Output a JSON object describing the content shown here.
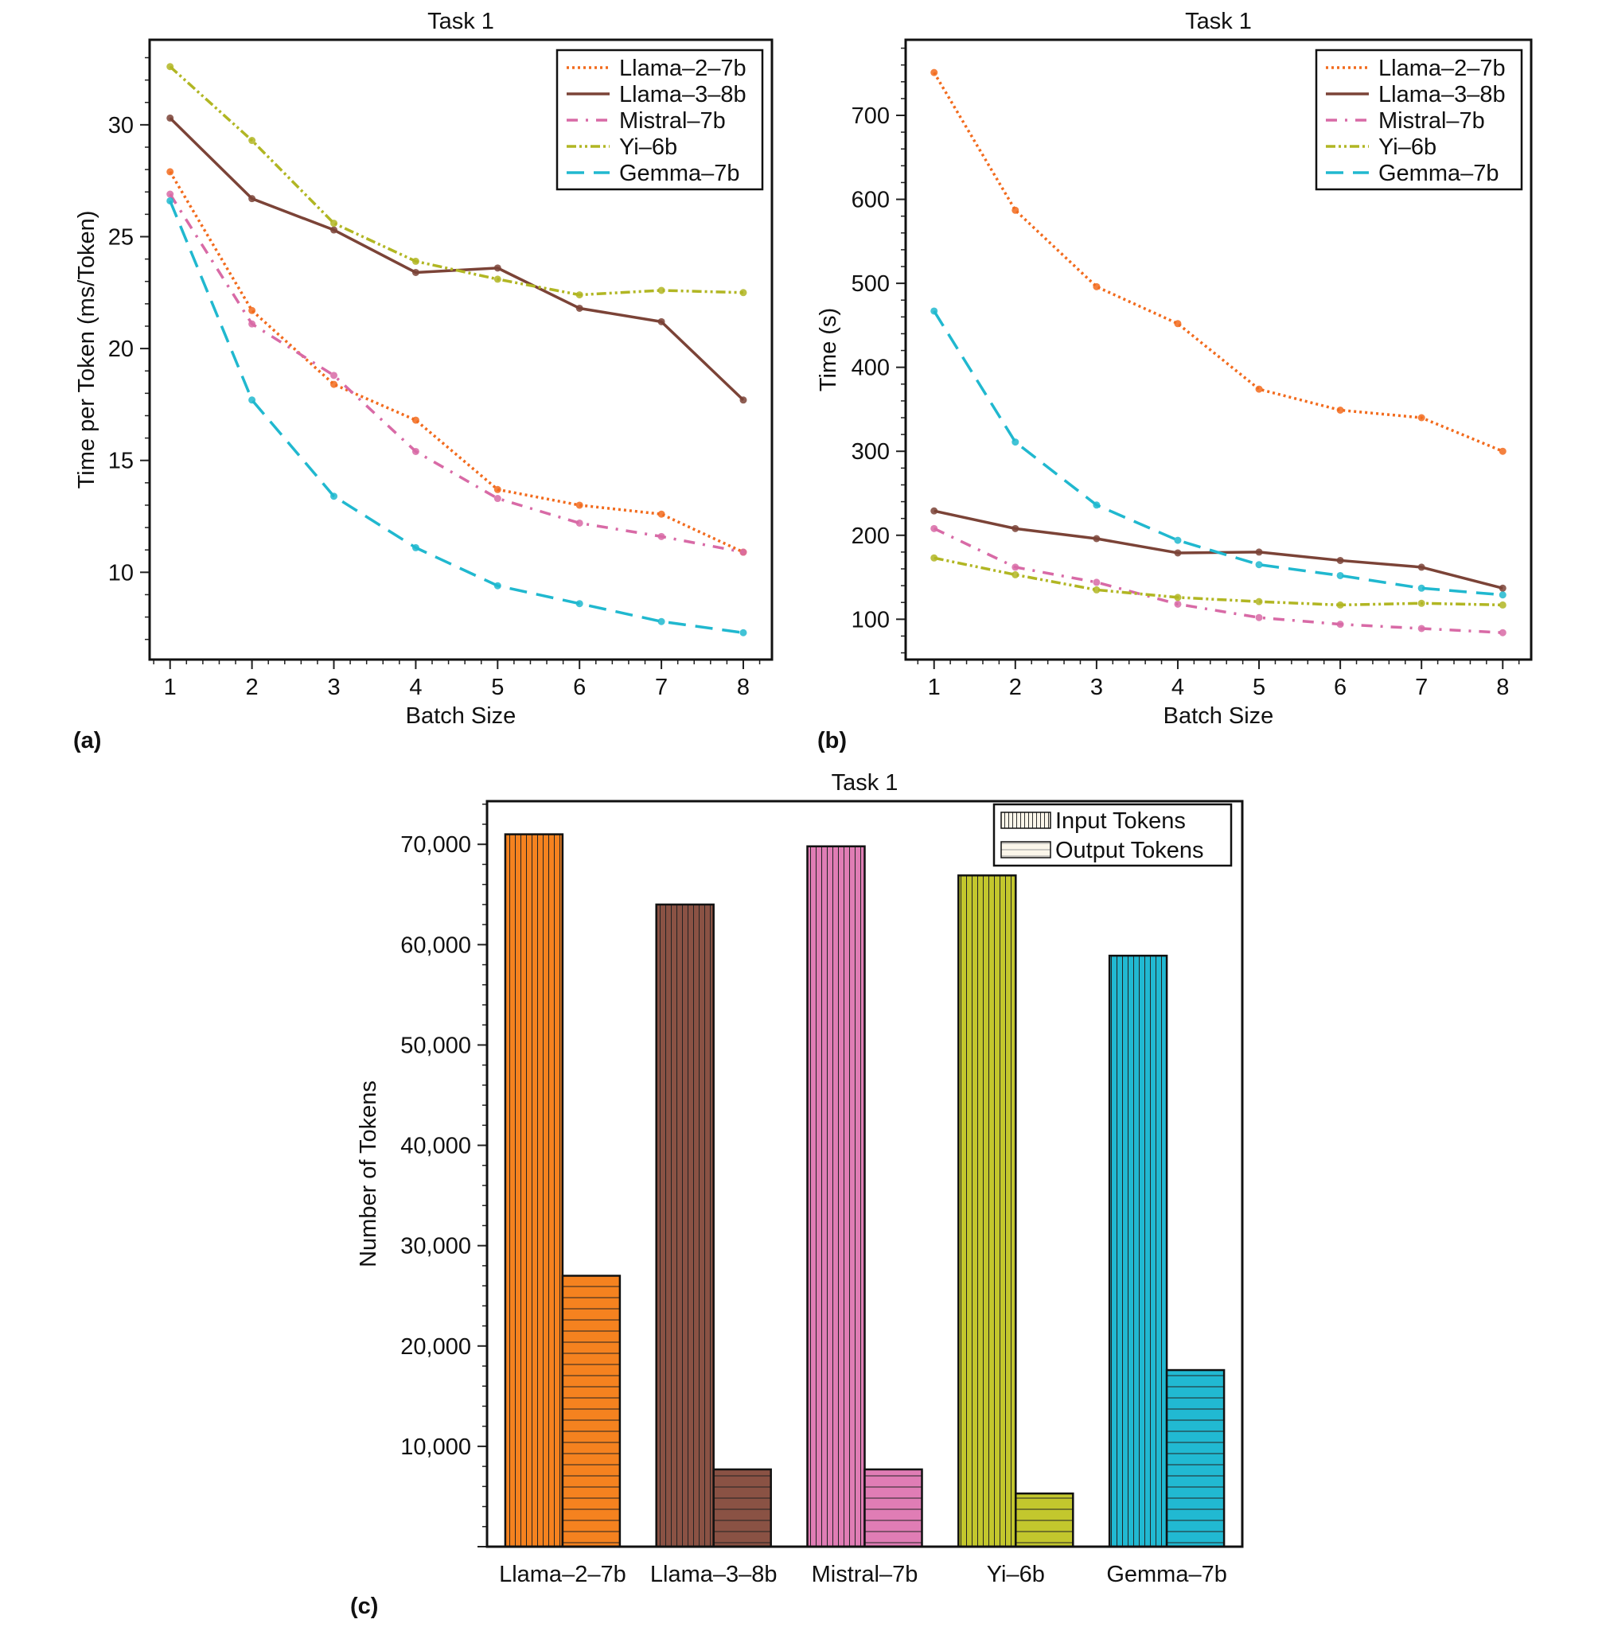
{
  "panels": {
    "a": "(a)",
    "b": "(b)",
    "c": "(c)"
  },
  "chart_data": [
    {
      "id": "a",
      "type": "line",
      "title": "Task 1",
      "xlabel": "Batch Size",
      "ylabel": "Time per Token (ms/Token)",
      "x": [
        1,
        2,
        3,
        4,
        5,
        6,
        7,
        8
      ],
      "xticks": [
        1,
        2,
        3,
        4,
        5,
        6,
        7,
        8
      ],
      "yticks": [
        10,
        15,
        20,
        25,
        30
      ],
      "ylim": [
        6.1,
        33.8
      ],
      "xlim": [
        0.75,
        8.35
      ],
      "legend": "top-right",
      "series": [
        {
          "name": "Llama–2–7b",
          "color": "#f26b1d",
          "dash": "3,4",
          "values": [
            27.9,
            21.7,
            18.4,
            16.8,
            13.7,
            13.0,
            12.6,
            10.9
          ]
        },
        {
          "name": "Llama–3–8b",
          "color": "#7b4337",
          "dash": "",
          "values": [
            30.3,
            26.7,
            25.3,
            23.4,
            23.6,
            21.8,
            21.2,
            17.7
          ]
        },
        {
          "name": "Mistral–7b",
          "color": "#d86aa6",
          "dash": "14,10,3,10",
          "values": [
            26.9,
            21.1,
            18.8,
            15.4,
            13.3,
            12.2,
            11.6,
            10.9
          ]
        },
        {
          "name": "Yi–6b",
          "color": "#b1b623",
          "dash": "12,4,3,4,3,4",
          "values": [
            32.6,
            29.3,
            25.6,
            23.9,
            23.1,
            22.4,
            22.6,
            22.5
          ]
        },
        {
          "name": "Gemma–7b",
          "color": "#20b8cf",
          "dash": "22,12",
          "values": [
            26.6,
            17.7,
            13.4,
            11.1,
            9.4,
            8.6,
            7.8,
            7.3
          ]
        }
      ]
    },
    {
      "id": "b",
      "type": "line",
      "title": "Task 1",
      "xlabel": "Batch Size",
      "ylabel": "Time (s)",
      "x": [
        1,
        2,
        3,
        4,
        5,
        6,
        7,
        8
      ],
      "xticks": [
        1,
        2,
        3,
        4,
        5,
        6,
        7,
        8
      ],
      "yticks": [
        100,
        200,
        300,
        400,
        500,
        600,
        700
      ],
      "ylim": [
        52,
        790
      ],
      "xlim": [
        0.65,
        8.35
      ],
      "legend": "top-right",
      "series": [
        {
          "name": "Llama–2–7b",
          "color": "#f26b1d",
          "dash": "3,4",
          "values": [
            751,
            587,
            496,
            452,
            374,
            349,
            340,
            300
          ]
        },
        {
          "name": "Llama–3–8b",
          "color": "#7b4337",
          "dash": "",
          "values": [
            229,
            208,
            196,
            179,
            180,
            170,
            162,
            137
          ]
        },
        {
          "name": "Mistral–7b",
          "color": "#d86aa6",
          "dash": "14,10,3,10",
          "values": [
            208,
            162,
            144,
            118,
            102,
            94,
            89,
            84
          ]
        },
        {
          "name": "Yi–6b",
          "color": "#b1b623",
          "dash": "12,4,3,4,3,4",
          "values": [
            173,
            153,
            135,
            126,
            121,
            117,
            119,
            117
          ]
        },
        {
          "name": "Gemma–7b",
          "color": "#20b8cf",
          "dash": "22,12",
          "values": [
            467,
            311,
            236,
            194,
            165,
            152,
            137,
            129
          ]
        }
      ]
    },
    {
      "id": "c",
      "type": "bar",
      "title": "Task 1",
      "xlabel": "",
      "ylabel": "Number of Tokens",
      "categories": [
        "Llama–2–7b",
        "Llama–3–8b",
        "Mistral–7b",
        "Yi–6b",
        "Gemma–7b"
      ],
      "colors": [
        "#f5821f",
        "#8a5244",
        "#e07db5",
        "#c3c72d",
        "#21b9d2"
      ],
      "yticks": [
        "10,000",
        "20,000",
        "30,000",
        "40,000",
        "50,000",
        "60,000",
        "70,000"
      ],
      "ytick_values": [
        10000,
        20000,
        30000,
        40000,
        50000,
        60000,
        70000
      ],
      "ylim": [
        0,
        74300
      ],
      "legend": "top-right",
      "series": [
        {
          "name": "Input Tokens",
          "pattern": "vertical-lines",
          "values": [
            71000,
            64000,
            69800,
            66900,
            58900
          ]
        },
        {
          "name": "Output Tokens",
          "pattern": "horizontal-lines",
          "values": [
            27000,
            7700,
            7700,
            5300,
            17600
          ]
        }
      ]
    }
  ]
}
